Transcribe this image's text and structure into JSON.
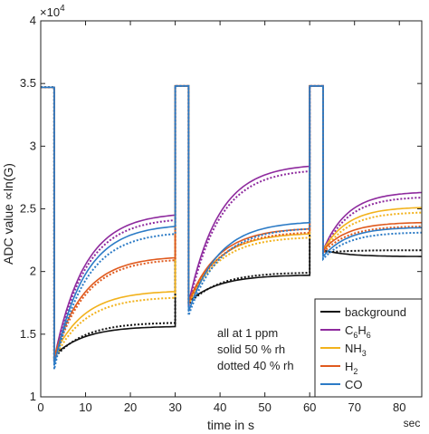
{
  "chart_data": {
    "type": "line",
    "xlabel": "time in s",
    "x_unit_label": "sec",
    "ylabel": "ADC value ∝ln(G)",
    "y_exponent_label": "×10",
    "y_exponent_power": "4",
    "xlim": [
      0,
      85
    ],
    "ylim": [
      1,
      4
    ],
    "x_ticks": [
      0,
      10,
      20,
      30,
      40,
      50,
      60,
      70,
      80
    ],
    "y_ticks": [
      1,
      1.5,
      2,
      2.5,
      3,
      3.5,
      4
    ],
    "grid": false,
    "legend_position": "bottom-right",
    "annotations": [
      "all at 1 ppm",
      "solid 50 % rh",
      "dotted 40 % rh"
    ],
    "colors": {
      "background": "#111111",
      "C6H6": "#8e2a9e",
      "NH3": "#f2b21c",
      "H2": "#e05a1e",
      "CO": "#2c7bc6",
      "steel": "#707a86"
    },
    "legend": [
      {
        "key": "background",
        "parts": [
          [
            "background",
            ""
          ]
        ]
      },
      {
        "key": "C6H6",
        "parts": [
          [
            "C",
            ""
          ],
          [
            "6",
            "sub"
          ],
          [
            "H",
            ""
          ],
          [
            "6",
            "sub"
          ]
        ]
      },
      {
        "key": "NH3",
        "parts": [
          [
            "NH",
            ""
          ],
          [
            "3",
            "sub"
          ]
        ]
      },
      {
        "key": "H2",
        "parts": [
          [
            "H",
            ""
          ],
          [
            "2",
            "sub"
          ]
        ]
      },
      {
        "key": "CO",
        "parts": [
          [
            "CO",
            ""
          ]
        ]
      }
    ],
    "segment_starts": [
      3,
      33,
      63
    ],
    "segment_ends": [
      30,
      60,
      85
    ],
    "series": [
      {
        "key": "background",
        "name": "background",
        "solid": {
          "s1": [
            1.33,
            1.56
          ],
          "s2": [
            1.76,
            1.97
          ],
          "s3": [
            2.17,
            2.12
          ]
        },
        "dotted": {
          "s1": [
            1.31,
            1.59
          ],
          "s2": [
            1.74,
            1.99
          ],
          "s3": [
            2.15,
            2.17
          ]
        }
      },
      {
        "key": "C6H6",
        "name": "C6H6",
        "solid": {
          "s1": [
            1.3,
            2.45
          ],
          "s2": [
            1.75,
            2.84
          ],
          "s3": [
            2.17,
            2.63
          ]
        },
        "dotted": {
          "s1": [
            1.28,
            2.41
          ],
          "s2": [
            1.72,
            2.8
          ],
          "s3": [
            2.15,
            2.59
          ]
        }
      },
      {
        "key": "NH3",
        "name": "NH3",
        "solid": {
          "s1": [
            1.33,
            1.84
          ],
          "s2": [
            1.76,
            2.3
          ],
          "s3": [
            2.17,
            2.51
          ]
        },
        "dotted": {
          "s1": [
            1.3,
            1.79
          ],
          "s2": [
            1.74,
            2.27
          ],
          "s3": [
            2.15,
            2.47
          ]
        }
      },
      {
        "key": "H2",
        "name": "H2",
        "solid": {
          "s1": [
            1.32,
            2.11
          ],
          "s2": [
            1.76,
            2.34
          ],
          "s3": [
            2.17,
            2.39
          ]
        },
        "dotted": {
          "s1": [
            1.29,
            2.09
          ],
          "s2": [
            1.74,
            2.31
          ],
          "s3": [
            2.15,
            2.36
          ]
        }
      },
      {
        "key": "CO",
        "name": "CO",
        "solid": {
          "s1": [
            1.25,
            2.36
          ],
          "s2": [
            1.68,
            2.39
          ],
          "s3": [
            2.12,
            2.35
          ]
        },
        "dotted": {
          "s1": [
            1.22,
            2.3
          ],
          "s2": [
            1.65,
            2.34
          ],
          "s3": [
            2.1,
            2.31
          ]
        }
      }
    ]
  }
}
